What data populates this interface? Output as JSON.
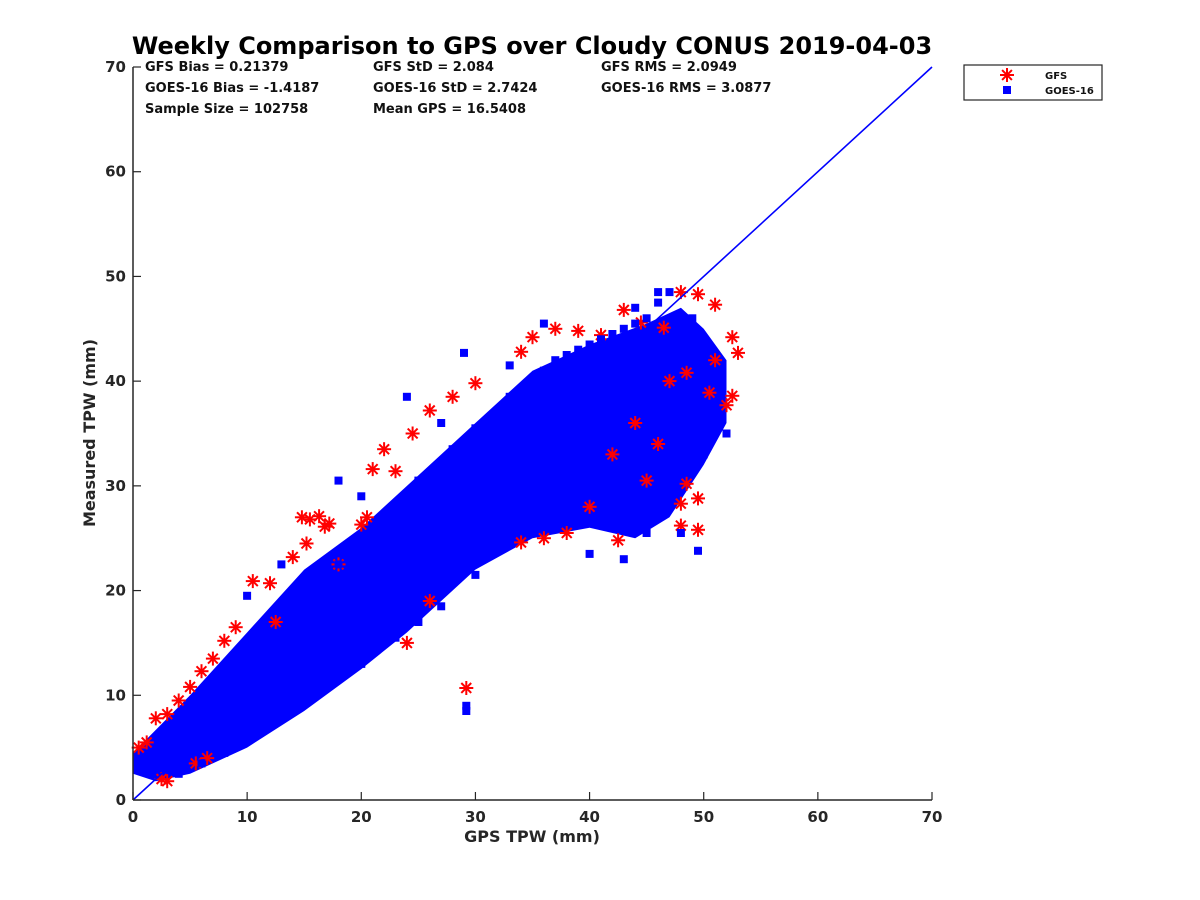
{
  "chart_data": {
    "type": "scatter",
    "title": "Weekly Comparison to GPS over Cloudy CONUS 2019-04-03",
    "xlabel": "GPS TPW (mm)",
    "ylabel": "Measured TPW (mm)",
    "xlim": [
      0,
      70
    ],
    "ylim": [
      0,
      70
    ],
    "xticks": [
      "0",
      "10",
      "20",
      "30",
      "40",
      "50",
      "60",
      "70"
    ],
    "yticks": [
      "0",
      "10",
      "20",
      "30",
      "40",
      "50",
      "60",
      "70"
    ],
    "grid": false,
    "legend_position": "top-right outside",
    "stats": [
      "GFS Bias = 0.21379",
      "GFS StD = 2.084",
      "GFS RMS = 2.0949",
      "GOES-16 Bias = -1.4187",
      "GOES-16 StD = 2.7424",
      "GOES-16 RMS = 3.0877",
      "Sample Size = 102758",
      "Mean GPS = 16.5408"
    ],
    "reference_line": {
      "name": "1:1",
      "x": [
        0,
        70
      ],
      "y": [
        0,
        70
      ],
      "color": "#0000ff"
    },
    "series": [
      {
        "name": "GFS",
        "marker": "asterisk",
        "color": "#ff0000",
        "points": [
          [
            0.5,
            5.0
          ],
          [
            1.2,
            5.5
          ],
          [
            2.0,
            7.8
          ],
          [
            2.5,
            2.0
          ],
          [
            3.0,
            8.2
          ],
          [
            4.0,
            9.5
          ],
          [
            5.0,
            10.8
          ],
          [
            6.0,
            12.3
          ],
          [
            7.0,
            13.5
          ],
          [
            8.0,
            15.2
          ],
          [
            9.0,
            16.5
          ],
          [
            10.5,
            20.9
          ],
          [
            12.0,
            20.7
          ],
          [
            14.0,
            23.2
          ],
          [
            14.8,
            27.0
          ],
          [
            15.5,
            26.8
          ],
          [
            16.3,
            27.1
          ],
          [
            16.8,
            26.1
          ],
          [
            15.2,
            24.5
          ],
          [
            17.2,
            26.4
          ],
          [
            20.0,
            26.3
          ],
          [
            21.0,
            31.6
          ],
          [
            22.0,
            33.5
          ],
          [
            23.0,
            31.4
          ],
          [
            24.5,
            35.0
          ],
          [
            26.0,
            37.2
          ],
          [
            28.0,
            38.5
          ],
          [
            30.0,
            39.8
          ],
          [
            34.0,
            42.8
          ],
          [
            35.0,
            44.2
          ],
          [
            37.0,
            45.0
          ],
          [
            39.0,
            44.8
          ],
          [
            41.0,
            44.4
          ],
          [
            43.0,
            46.8
          ],
          [
            44.5,
            45.6
          ],
          [
            46.5,
            45.1
          ],
          [
            48.0,
            48.5
          ],
          [
            49.5,
            48.3
          ],
          [
            51.0,
            47.3
          ],
          [
            52.5,
            44.2
          ],
          [
            53.0,
            42.7
          ],
          [
            51.0,
            42.0
          ],
          [
            48.5,
            40.8
          ],
          [
            52.5,
            38.6
          ],
          [
            52.0,
            37.7
          ],
          [
            50.5,
            38.9
          ],
          [
            48.5,
            30.2
          ],
          [
            49.5,
            28.8
          ],
          [
            48.0,
            28.3
          ],
          [
            49.5,
            25.8
          ],
          [
            48.0,
            26.2
          ],
          [
            42.5,
            24.8
          ],
          [
            34.0,
            24.6
          ],
          [
            36.0,
            25.0
          ],
          [
            38.0,
            25.5
          ],
          [
            29.2,
            10.7
          ],
          [
            24.0,
            15.0
          ],
          [
            26.0,
            19.0
          ],
          [
            40.0,
            28.0
          ],
          [
            45.0,
            30.5
          ],
          [
            44.0,
            36.0
          ],
          [
            47.0,
            40.0
          ],
          [
            46.0,
            34.0
          ],
          [
            42.0,
            33.0
          ],
          [
            20.5,
            27.0
          ],
          [
            18.0,
            22.5
          ],
          [
            12.5,
            17.0
          ],
          [
            5.5,
            3.5
          ],
          [
            3.0,
            1.8
          ],
          [
            6.5,
            4.0
          ]
        ]
      },
      {
        "name": "GOES-16",
        "marker": "square",
        "color": "#0000ff",
        "points": [
          [
            0.5,
            3.0
          ],
          [
            1.0,
            4.0
          ],
          [
            2.0,
            3.5
          ],
          [
            3.0,
            5.0
          ],
          [
            4.0,
            4.5
          ],
          [
            5.0,
            6.5
          ],
          [
            6.0,
            7.0
          ],
          [
            7.0,
            8.5
          ],
          [
            8.0,
            9.5
          ],
          [
            9.0,
            11.0
          ],
          [
            10.0,
            12.5
          ],
          [
            11.0,
            13.0
          ],
          [
            12.0,
            15.0
          ],
          [
            13.0,
            16.0
          ],
          [
            14.0,
            17.5
          ],
          [
            15.0,
            18.5
          ],
          [
            16.0,
            20.5
          ],
          [
            17.0,
            21.0
          ],
          [
            18.0,
            22.5
          ],
          [
            19.0,
            23.0
          ],
          [
            20.0,
            24.5
          ],
          [
            21.0,
            25.5
          ],
          [
            22.0,
            27.0
          ],
          [
            23.0,
            28.0
          ],
          [
            24.0,
            29.0
          ],
          [
            25.0,
            30.5
          ],
          [
            26.0,
            31.0
          ],
          [
            27.0,
            32.0
          ],
          [
            28.0,
            33.5
          ],
          [
            29.0,
            34.0
          ],
          [
            30.0,
            35.5
          ],
          [
            31.0,
            36.0
          ],
          [
            32.0,
            37.0
          ],
          [
            33.0,
            38.5
          ],
          [
            34.0,
            39.0
          ],
          [
            35.0,
            40.0
          ],
          [
            36.0,
            41.0
          ],
          [
            37.0,
            42.0
          ],
          [
            38.0,
            42.5
          ],
          [
            39.0,
            43.0
          ],
          [
            40.0,
            43.5
          ],
          [
            41.0,
            44.0
          ],
          [
            42.0,
            44.5
          ],
          [
            43.0,
            45.0
          ],
          [
            44.0,
            45.5
          ],
          [
            45.0,
            46.0
          ],
          [
            46.0,
            47.5
          ],
          [
            47.0,
            48.5
          ],
          [
            49.0,
            46.0
          ],
          [
            50.0,
            44.0
          ],
          [
            49.5,
            36.0
          ],
          [
            50.0,
            33.0
          ],
          [
            52.0,
            35.0
          ],
          [
            49.5,
            23.8
          ],
          [
            48.0,
            25.5
          ],
          [
            43.0,
            23.0
          ],
          [
            45.0,
            25.5
          ],
          [
            40.0,
            23.5
          ],
          [
            34.0,
            26.0
          ],
          [
            31.0,
            23.5
          ],
          [
            30.0,
            21.5
          ],
          [
            27.0,
            18.5
          ],
          [
            25.0,
            17.0
          ],
          [
            23.0,
            15.5
          ],
          [
            20.0,
            13.0
          ],
          [
            17.0,
            11.0
          ],
          [
            14.0,
            9.0
          ],
          [
            11.0,
            6.5
          ],
          [
            8.0,
            4.5
          ],
          [
            6.0,
            3.5
          ],
          [
            4.0,
            2.5
          ],
          [
            29.2,
            9.0
          ],
          [
            29.2,
            8.5
          ],
          [
            29.0,
            42.7
          ],
          [
            24.0,
            38.5
          ],
          [
            18.0,
            30.5
          ],
          [
            10.0,
            19.5
          ],
          [
            13.0,
            22.5
          ],
          [
            20.0,
            29.0
          ],
          [
            27.0,
            36.0
          ],
          [
            33.0,
            41.5
          ],
          [
            36.0,
            45.5
          ],
          [
            44.0,
            47.0
          ],
          [
            46.0,
            48.5
          ],
          [
            38.0,
            36.0
          ],
          [
            35.0,
            30.0
          ],
          [
            40.0,
            31.0
          ],
          [
            42.0,
            38.0
          ],
          [
            30.0,
            28.0
          ],
          [
            25.0,
            24.0
          ],
          [
            22.0,
            20.0
          ],
          [
            18.0,
            17.0
          ],
          [
            15.0,
            14.0
          ],
          [
            12.0,
            11.0
          ],
          [
            9.0,
            8.0
          ],
          [
            7.0,
            6.0
          ],
          [
            5.0,
            4.5
          ]
        ]
      }
    ]
  }
}
